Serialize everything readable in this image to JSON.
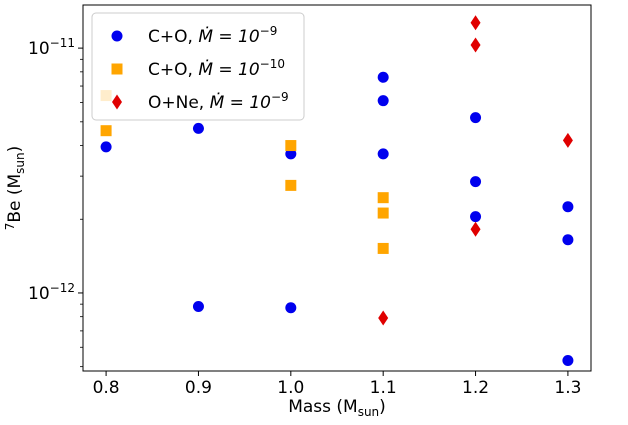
{
  "chart_data": {
    "type": "scatter",
    "title": "",
    "xlabel": "Mass (M",
    "xlabel_sub": "sun",
    "xlabel_close": ")",
    "ylabel_sup": "7",
    "ylabel": "Be (M",
    "ylabel_sub": "sun",
    "ylabel_close": ")",
    "xscale": "linear",
    "yscale": "log",
    "xlim": [
      0.775,
      1.325
    ],
    "ylim": [
      4.8e-13,
      1.5e-11
    ],
    "x_ticks": [
      {
        "value": 0.8,
        "label": "0.8"
      },
      {
        "value": 0.9,
        "label": "0.9"
      },
      {
        "value": 1.0,
        "label": "1.0"
      },
      {
        "value": 1.1,
        "label": "1.1"
      },
      {
        "value": 1.2,
        "label": "1.2"
      },
      {
        "value": 1.3,
        "label": "1.3"
      }
    ],
    "y_ticks": [
      {
        "value": 1e-12,
        "base": "10",
        "exp": "−12"
      },
      {
        "value": 1e-11,
        "base": "10",
        "exp": "−11"
      }
    ],
    "legend_position": "top-left",
    "series": [
      {
        "name": "C+O, Ṁ = 10^-9",
        "label_main": "C+O, ",
        "label_math": "Ṁ = 10",
        "label_exp": "−9",
        "marker": "circle",
        "color": "#0000ee",
        "points": [
          {
            "x": 0.8,
            "y": 3.95e-12
          },
          {
            "x": 0.9,
            "y": 4.7e-12
          },
          {
            "x": 0.9,
            "y": 8.8e-13
          },
          {
            "x": 1.0,
            "y": 3.7e-12
          },
          {
            "x": 1.0,
            "y": 8.7e-13
          },
          {
            "x": 1.1,
            "y": 7.6e-12
          },
          {
            "x": 1.1,
            "y": 6.1e-12
          },
          {
            "x": 1.1,
            "y": 3.7e-12
          },
          {
            "x": 1.2,
            "y": 5.2e-12
          },
          {
            "x": 1.2,
            "y": 2.85e-12
          },
          {
            "x": 1.2,
            "y": 2.05e-12
          },
          {
            "x": 1.3,
            "y": 2.25e-12
          },
          {
            "x": 1.3,
            "y": 1.65e-12
          },
          {
            "x": 1.3,
            "y": 5.3e-13
          }
        ]
      },
      {
        "name": "C+O, Ṁ = 10^-10",
        "label_main": "C+O, ",
        "label_math": "Ṁ = 10",
        "label_exp": "−10",
        "marker": "square",
        "color": "#ffa500",
        "points": [
          {
            "x": 0.8,
            "y": 6.4e-12
          },
          {
            "x": 0.8,
            "y": 4.6e-12
          },
          {
            "x": 1.0,
            "y": 4e-12
          },
          {
            "x": 1.0,
            "y": 2.75e-12
          },
          {
            "x": 1.1,
            "y": 2.45e-12
          },
          {
            "x": 1.1,
            "y": 2.12e-12
          },
          {
            "x": 1.1,
            "y": 1.52e-12
          }
        ]
      },
      {
        "name": "O+Ne, Ṁ = 10^-9",
        "label_main": "O+Ne, ",
        "label_math": "Ṁ = 10",
        "label_exp": "−9",
        "marker": "diamond",
        "color": "#e00000",
        "points": [
          {
            "x": 1.1,
            "y": 7.9e-13
          },
          {
            "x": 1.2,
            "y": 1.27e-11
          },
          {
            "x": 1.2,
            "y": 1.03e-11
          },
          {
            "x": 1.2,
            "y": 1.82e-12
          },
          {
            "x": 1.3,
            "y": 4.2e-12
          }
        ]
      }
    ]
  }
}
